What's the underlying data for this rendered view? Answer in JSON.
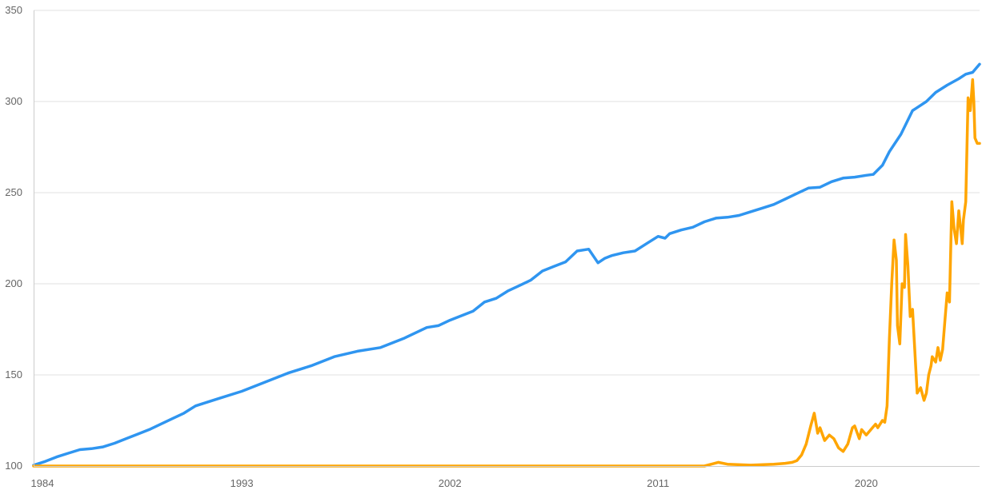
{
  "chart_data": {
    "type": "line",
    "title": "",
    "xlabel": "",
    "ylabel": "",
    "xlim": [
      1984,
      2024.9
    ],
    "ylim": [
      100,
      350
    ],
    "y_ticks": [
      100,
      150,
      200,
      250,
      300,
      350
    ],
    "x_ticks": [
      1984,
      1993,
      2002,
      2011,
      2020
    ],
    "grid": true,
    "legend": "none",
    "series": [
      {
        "color": "#2f95f0",
        "x": [
          1984.0,
          1984.5,
          1985.0,
          1985.5,
          1986.0,
          1986.5,
          1987.0,
          1987.5,
          1988.0,
          1988.5,
          1989.0,
          1989.5,
          1990.0,
          1990.5,
          1991.0,
          1991.5,
          1992.0,
          1993.0,
          1994.0,
          1995.0,
          1996.0,
          1997.0,
          1998.0,
          1999.0,
          2000.0,
          2001.0,
          2001.5,
          2002.0,
          2003.0,
          2003.5,
          2004.0,
          2004.5,
          2005.0,
          2005.5,
          2006.0,
          2006.5,
          2007.0,
          2007.5,
          2008.0,
          2008.4,
          2008.7,
          2009.0,
          2009.5,
          2010.0,
          2010.5,
          2011.0,
          2011.3,
          2011.5,
          2012.0,
          2012.5,
          2013.0,
          2013.5,
          2014.0,
          2014.5,
          2015.0,
          2015.5,
          2016.0,
          2016.5,
          2017.0,
          2017.5,
          2018.0,
          2018.5,
          2019.0,
          2019.5,
          2020.0,
          2020.3,
          2020.7,
          2021.0,
          2021.5,
          2022.0,
          2022.3,
          2022.6,
          2023.0,
          2023.5,
          2024.0,
          2024.3,
          2024.6,
          2024.9
        ],
        "y": [
          100.5,
          102.5,
          105,
          107,
          109,
          109.5,
          110.5,
          112.5,
          115,
          117.5,
          120,
          123,
          126,
          129,
          133,
          135,
          137,
          141,
          146,
          151,
          155,
          160,
          163,
          165,
          170,
          176,
          177,
          180,
          185,
          190,
          192,
          196,
          199,
          202,
          207,
          209.5,
          212,
          218,
          219,
          211.5,
          214,
          215.5,
          217,
          218,
          222,
          226,
          225,
          227.5,
          229.5,
          231,
          234,
          236,
          236.5,
          237.5,
          239.5,
          241.5,
          243.5,
          246.5,
          249.5,
          252.5,
          253,
          256,
          258,
          258.5,
          259.5,
          260,
          265,
          272.5,
          282,
          295,
          297.5,
          300,
          305,
          309,
          312.5,
          315,
          316,
          320.5
        ]
      },
      {
        "color": "#ffa500",
        "x": [
          1984.0,
          2000.0,
          2010.0,
          2012.0,
          2013.0,
          2013.3,
          2013.6,
          2014.0,
          2015.0,
          2016.0,
          2016.5,
          2016.8,
          2017.0,
          2017.2,
          2017.4,
          2017.6,
          2017.75,
          2017.9,
          2018.0,
          2018.2,
          2018.4,
          2018.6,
          2018.8,
          2019.0,
          2019.2,
          2019.4,
          2019.5,
          2019.7,
          2019.8,
          2020.0,
          2020.2,
          2020.4,
          2020.5,
          2020.7,
          2020.8,
          2020.9,
          2021.0,
          2021.1,
          2021.2,
          2021.3,
          2021.35,
          2021.45,
          2021.55,
          2021.65,
          2021.7,
          2021.8,
          2021.9,
          2022.0,
          2022.1,
          2022.2,
          2022.35,
          2022.5,
          2022.6,
          2022.7,
          2022.8,
          2022.85,
          2023.0,
          2023.1,
          2023.2,
          2023.3,
          2023.4,
          2023.5,
          2023.6,
          2023.7,
          2023.8,
          2023.9,
          2024.0,
          2024.1,
          2024.15,
          2024.2,
          2024.3,
          2024.4,
          2024.5,
          2024.6,
          2024.65,
          2024.7,
          2024.8,
          2024.9
        ],
        "y": [
          100,
          100,
          100,
          100,
          100,
          101,
          102,
          101,
          100.5,
          101,
          101.5,
          102,
          103,
          106,
          112,
          122,
          129,
          118,
          121,
          114,
          117,
          115,
          110,
          108,
          112,
          121,
          122,
          115,
          120,
          117,
          120,
          123,
          121,
          125,
          124,
          133,
          170,
          200,
          224,
          213,
          177,
          167,
          200,
          198,
          227,
          210,
          182,
          186,
          163,
          140,
          143,
          136,
          140,
          150,
          155,
          160,
          157,
          165,
          158,
          164,
          180,
          195,
          190,
          245,
          230,
          222,
          240,
          228,
          222,
          235,
          245,
          302,
          295,
          312,
          300,
          280,
          277,
          277
        ]
      }
    ]
  }
}
